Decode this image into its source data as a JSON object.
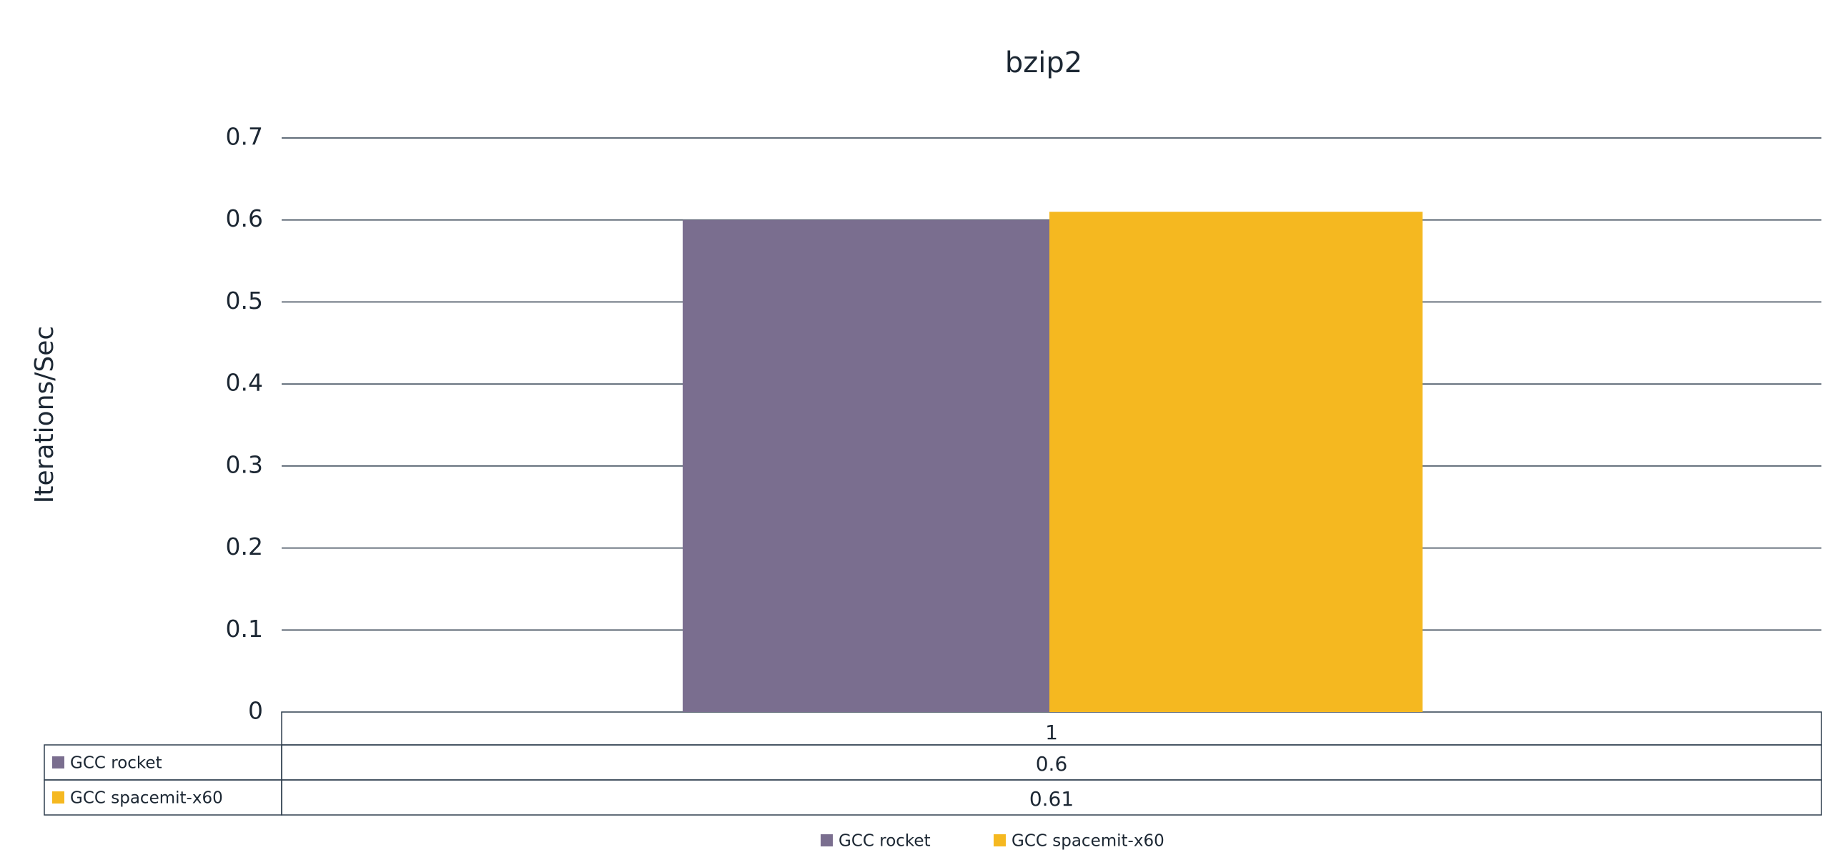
{
  "chart_data": {
    "type": "bar",
    "title": "bzip2",
    "y_label": "Iterations/Sec",
    "categories": [
      "1"
    ],
    "series": [
      {
        "name": "GCC rocket",
        "color": "#7a6e8f",
        "values": [
          0.6
        ]
      },
      {
        "name": "GCC spacemit-x60",
        "color": "#f5b820",
        "values": [
          0.61
        ]
      }
    ],
    "ylim": [
      0,
      0.7
    ],
    "yticks": [
      0,
      0.1,
      0.2,
      0.3,
      0.4,
      0.5,
      0.6,
      0.7
    ],
    "grid": true,
    "legend": "bottom"
  }
}
